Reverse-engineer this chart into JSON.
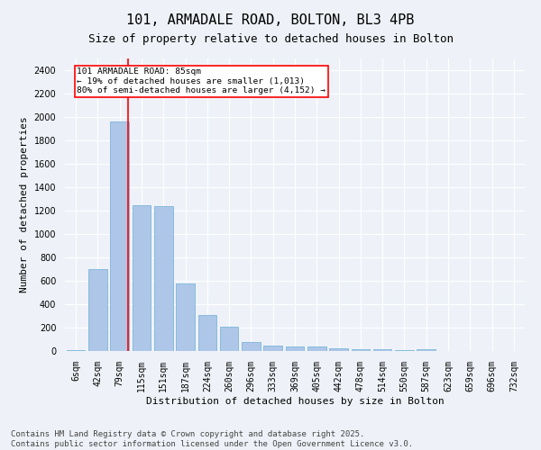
{
  "title1": "101, ARMADALE ROAD, BOLTON, BL3 4PB",
  "title2": "Size of property relative to detached houses in Bolton",
  "xlabel": "Distribution of detached houses by size in Bolton",
  "ylabel": "Number of detached properties",
  "categories": [
    "6sqm",
    "42sqm",
    "79sqm",
    "115sqm",
    "151sqm",
    "187sqm",
    "224sqm",
    "260sqm",
    "296sqm",
    "333sqm",
    "369sqm",
    "405sqm",
    "442sqm",
    "478sqm",
    "514sqm",
    "550sqm",
    "587sqm",
    "623sqm",
    "659sqm",
    "696sqm",
    "732sqm"
  ],
  "values": [
    10,
    700,
    1960,
    1250,
    1240,
    575,
    305,
    205,
    80,
    45,
    35,
    35,
    20,
    18,
    15,
    5,
    12,
    2,
    0,
    0,
    0
  ],
  "bar_color": "#aec6e8",
  "bar_edge_color": "#6aafd6",
  "vline_color": "red",
  "vline_index": 2.4,
  "annotation_text": "101 ARMADALE ROAD: 85sqm\n← 19% of detached houses are smaller (1,013)\n80% of semi-detached houses are larger (4,152) →",
  "annotation_box_color": "white",
  "annotation_box_edge": "red",
  "ylim": [
    0,
    2500
  ],
  "yticks": [
    0,
    200,
    400,
    600,
    800,
    1000,
    1200,
    1400,
    1600,
    1800,
    2000,
    2200,
    2400
  ],
  "background_color": "#eef2f8",
  "grid_color": "white",
  "footer_text": "Contains HM Land Registry data © Crown copyright and database right 2025.\nContains public sector information licensed under the Open Government Licence v3.0.",
  "title_fontsize": 11,
  "subtitle_fontsize": 9,
  "axis_label_fontsize": 8,
  "tick_fontsize": 7,
  "footer_fontsize": 6.5
}
